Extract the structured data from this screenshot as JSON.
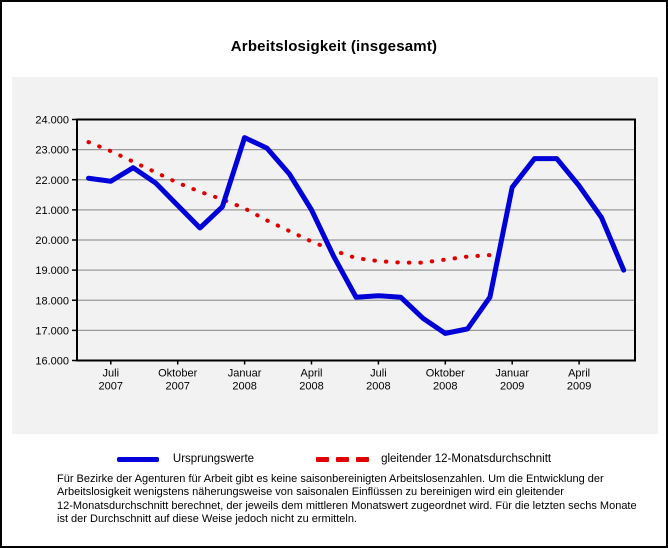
{
  "title": "Arbeitslosigkeit (insgesamt)",
  "legend": {
    "series1": "Ursprungswerte",
    "series2": "gleitender 12-Monatsdurchschnitt"
  },
  "footnote_lines": [
    "Für Bezirke der Agenturen für Arbeit gibt es keine saisonbereinigten Arbeitslosenzahlen. Um die Entwicklung der",
    "Arbeitslosigkeit wenigstens näherungsweise von saisonalen Einflüssen zu bereinigen wird ein gleitender",
    "12-Monatsdurchschnitt berechnet, der jeweils dem mittleren Monatswert zugeordnet wird. Für die letzten sechs Monate",
    "ist der Durchschnitt auf diese Weise jedoch nicht zu ermitteln."
  ],
  "colors": {
    "blue": "#0000d8",
    "red": "#e00000",
    "grid": "#999999",
    "frame": "#000000",
    "chart_bg": "#f2f2f2"
  },
  "chart_data": {
    "type": "line",
    "title": "Arbeitslosigkeit (insgesamt)",
    "categories": [
      "Jun 2007",
      "Jul 2007",
      "Aug 2007",
      "Sep 2007",
      "Okt 2007",
      "Nov 2007",
      "Dez 2007",
      "Jan 2008",
      "Feb 2008",
      "Mär 2008",
      "Apr 2008",
      "Mai 2008",
      "Jun 2008",
      "Jul 2008",
      "Aug 2008",
      "Sep 2008",
      "Okt 2008",
      "Nov 2008",
      "Dez 2008",
      "Jan 2009",
      "Feb 2009",
      "Mär 2009",
      "Apr 2009",
      "Mai 2009",
      "Jun 2009"
    ],
    "series": [
      {
        "name": "Ursprungswerte",
        "style": "solid",
        "color": "#0000d8",
        "values": [
          22050,
          21950,
          22400,
          21900,
          21150,
          20400,
          21100,
          23400,
          23050,
          22200,
          21000,
          19450,
          18100,
          18150,
          18100,
          17400,
          16900,
          17050,
          18100,
          21750,
          22700,
          22700,
          21800,
          20750,
          19000
        ]
      },
      {
        "name": "gleitender 12-Monatsdurchschnitt",
        "style": "dotted",
        "color": "#e00000",
        "values": [
          23250,
          22950,
          22600,
          22250,
          21900,
          21600,
          21350,
          21050,
          20650,
          20300,
          19950,
          19650,
          19400,
          19300,
          19250,
          19250,
          19350,
          19450,
          19500,
          null,
          null,
          null,
          null,
          null,
          null
        ]
      }
    ],
    "ylim": [
      16000,
      24000
    ],
    "y_tick_step": 1000,
    "y_ticks": [
      "24.000",
      "23.000",
      "22.000",
      "21.000",
      "20.000",
      "19.000",
      "18.000",
      "17.000",
      "16.000"
    ],
    "x_ticks": [
      {
        "index": 1,
        "month": "Juli",
        "year": "2007"
      },
      {
        "index": 4,
        "month": "Oktober",
        "year": "2007"
      },
      {
        "index": 7,
        "month": "Januar",
        "year": "2008"
      },
      {
        "index": 10,
        "month": "April",
        "year": "2008"
      },
      {
        "index": 13,
        "month": "Juli",
        "year": "2008"
      },
      {
        "index": 16,
        "month": "Oktober",
        "year": "2008"
      },
      {
        "index": 19,
        "month": "Januar",
        "year": "2009"
      },
      {
        "index": 22,
        "month": "April",
        "year": "2009"
      }
    ],
    "grid": true,
    "legend_position": "bottom"
  }
}
